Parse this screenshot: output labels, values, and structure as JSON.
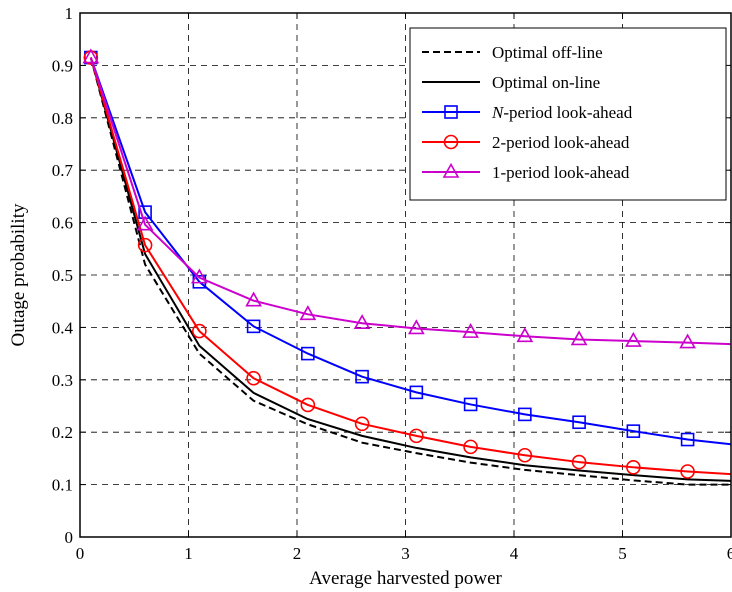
{
  "chart_data": {
    "type": "line",
    "title": "",
    "xlabel": "Average harvested power",
    "ylabel": "Outage probability",
    "xlim": [
      0,
      6
    ],
    "ylim": [
      0,
      1
    ],
    "x_ticks": [
      0,
      1,
      2,
      3,
      4,
      5,
      6
    ],
    "y_ticks": [
      0,
      0.1,
      0.2,
      0.3,
      0.4,
      0.5,
      0.6,
      0.7,
      0.8,
      0.9,
      1
    ],
    "x_tick_labels": [
      "0",
      "1",
      "2",
      "3",
      "4",
      "5",
      "6"
    ],
    "y_tick_labels": [
      "0",
      "0.1",
      "0.2",
      "0.3",
      "0.4",
      "0.5",
      "0.6",
      "0.7",
      "0.8",
      "0.9",
      "1"
    ],
    "grid": true,
    "legend_position": "top-right",
    "x": [
      0.1,
      0.6,
      1.1,
      1.6,
      2.1,
      2.6,
      3.1,
      3.6,
      4.1,
      4.6,
      5.1,
      5.6,
      6.0
    ],
    "series": [
      {
        "name": "Optimal off-line",
        "color": "#000000",
        "dash": "dashed",
        "marker": "none",
        "values": [
          0.915,
          0.52,
          0.35,
          0.26,
          0.215,
          0.18,
          0.16,
          0.142,
          0.128,
          0.118,
          0.108,
          0.1,
          0.1
        ]
      },
      {
        "name": "Optimal on-line",
        "color": "#000000",
        "dash": "solid",
        "marker": "none",
        "values": [
          0.915,
          0.54,
          0.365,
          0.275,
          0.225,
          0.193,
          0.17,
          0.152,
          0.137,
          0.127,
          0.118,
          0.11,
          0.107
        ]
      },
      {
        "name": "N-period look-ahead",
        "name_italic_prefix": "N",
        "name_rest": "-period look-ahead",
        "color": "#0000ff",
        "dash": "solid",
        "marker": "square",
        "values": [
          0.915,
          0.62,
          0.487,
          0.402,
          0.35,
          0.306,
          0.276,
          0.253,
          0.234,
          0.219,
          0.202,
          0.186,
          0.177
        ]
      },
      {
        "name": "2-period look-ahead",
        "color": "#ff0000",
        "dash": "solid",
        "marker": "circle",
        "values": [
          0.915,
          0.557,
          0.393,
          0.303,
          0.252,
          0.216,
          0.193,
          0.172,
          0.156,
          0.143,
          0.133,
          0.125,
          0.12
        ]
      },
      {
        "name": "1-period look-ahead",
        "color": "#cc00cc",
        "dash": "solid",
        "marker": "triangle",
        "values": [
          0.915,
          0.596,
          0.495,
          0.451,
          0.425,
          0.408,
          0.398,
          0.391,
          0.383,
          0.377,
          0.374,
          0.371,
          0.368
        ]
      }
    ]
  }
}
